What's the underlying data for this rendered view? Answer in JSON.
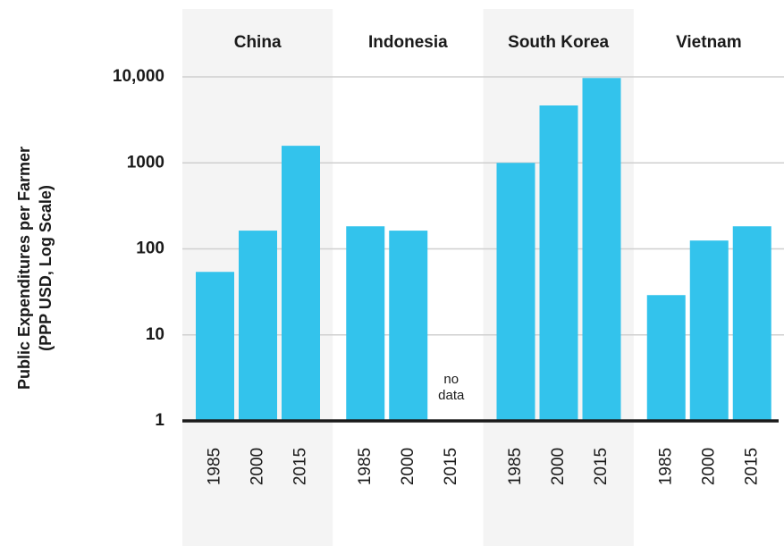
{
  "chart_data": {
    "type": "bar",
    "ylabel": [
      "Public Expenditures per Farmer",
      "(PPP USD, Log Scale)"
    ],
    "categories": [
      "China",
      "Indonesia",
      "South Korea",
      "Vietnam"
    ],
    "series": [
      {
        "name": "1985",
        "color": "#33c3ec",
        "values": [
          54,
          183,
          1000,
          29
        ]
      },
      {
        "name": "2000",
        "color": "#33c3ec",
        "values": [
          163,
          163,
          4650,
          125
        ]
      },
      {
        "name": "2015",
        "color": "#33c3ec",
        "values": [
          1580,
          null,
          9700,
          183
        ]
      }
    ],
    "null_label": "no data",
    "yscale": "log",
    "ylim": [
      1,
      10000
    ],
    "yticks": [
      1,
      10,
      100,
      1000,
      {
        "value": 10000,
        "label": "10,000"
      }
    ],
    "grid": true
  }
}
